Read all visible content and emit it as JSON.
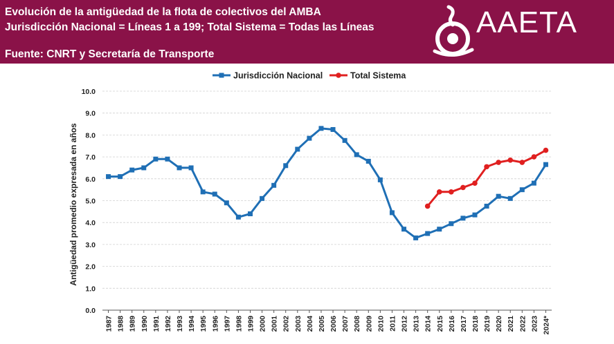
{
  "header": {
    "title": "Evolución de la antigüedad de la flota de colectivos del AMBA",
    "subtitle": "Jurisdicción Nacional = Líneas 1 a 199; Total Sistema = Todas las Líneas",
    "source": "Fuente: CNRT y Secretaría de Transporte",
    "logo_text": "AAETA",
    "background": "#8a1248"
  },
  "chart_data": {
    "type": "line",
    "title": "",
    "xlabel": "",
    "ylabel": "Antigüedad promedio expresada en años",
    "ylim": [
      0,
      10
    ],
    "yticks": [
      "0.0",
      "1.0",
      "2.0",
      "3.0",
      "4.0",
      "5.0",
      "6.0",
      "7.0",
      "8.0",
      "9.0",
      "10.0"
    ],
    "grid": true,
    "legend": "top-center",
    "categories": [
      "1987",
      "1988",
      "1989",
      "1990",
      "1991",
      "1992",
      "1993",
      "1994",
      "1995",
      "1996",
      "1997",
      "1998",
      "1999",
      "2000",
      "2001",
      "2002",
      "2003",
      "2004",
      "2005",
      "2006",
      "2007",
      "2008",
      "2009",
      "2010",
      "2011",
      "2012",
      "2013",
      "2014",
      "2015",
      "2016",
      "2017",
      "2018",
      "2019",
      "2020",
      "2021",
      "2022",
      "2023",
      "2024*"
    ],
    "series": [
      {
        "name": "Jurisdicción Nacional",
        "color": "#1f6fb5",
        "marker": "square",
        "values": [
          6.1,
          6.1,
          6.4,
          6.5,
          6.9,
          6.9,
          6.5,
          6.5,
          5.4,
          5.3,
          4.9,
          4.25,
          4.4,
          5.1,
          5.7,
          6.6,
          7.35,
          7.85,
          8.3,
          8.25,
          7.75,
          7.1,
          6.8,
          5.95,
          4.45,
          3.7,
          3.3,
          3.5,
          3.7,
          3.95,
          4.2,
          4.35,
          4.75,
          5.2,
          5.1,
          5.5,
          5.8,
          6.65
        ]
      },
      {
        "name": "Total Sistema",
        "color": "#e02020",
        "marker": "circle",
        "values": [
          null,
          null,
          null,
          null,
          null,
          null,
          null,
          null,
          null,
          null,
          null,
          null,
          null,
          null,
          null,
          null,
          null,
          null,
          null,
          null,
          null,
          null,
          null,
          null,
          null,
          null,
          null,
          4.75,
          5.4,
          5.4,
          5.6,
          5.8,
          6.55,
          6.75,
          6.85,
          6.75,
          7.0,
          7.3
        ]
      }
    ]
  }
}
